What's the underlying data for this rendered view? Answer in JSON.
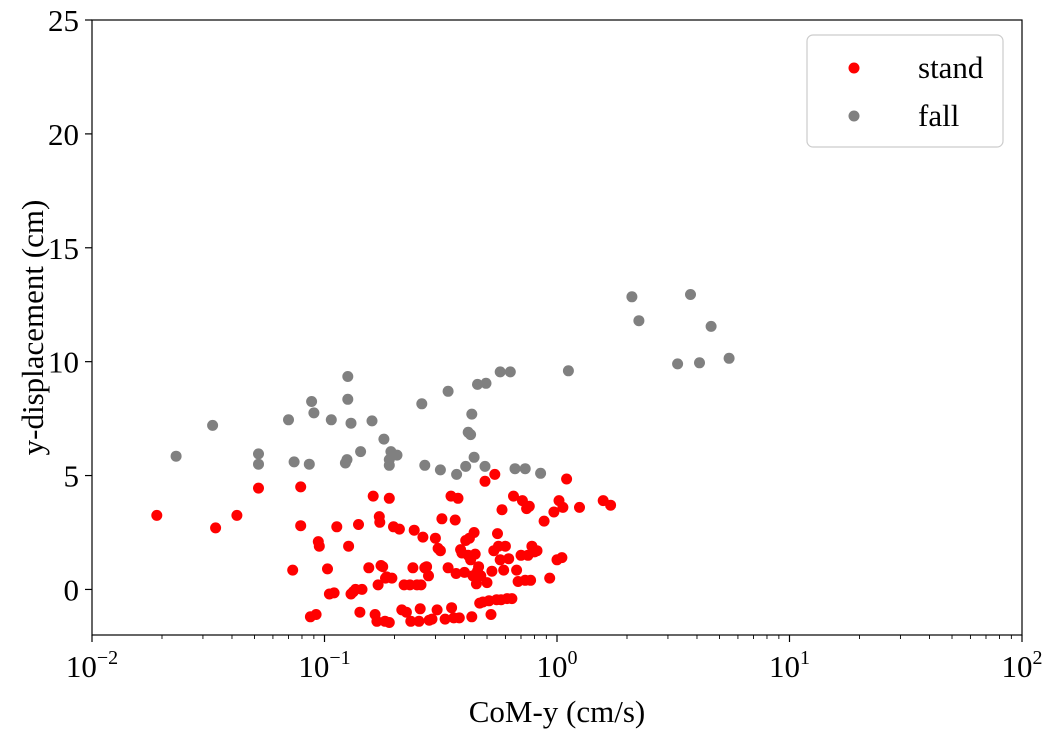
{
  "chart_data": {
    "type": "scatter",
    "title": "",
    "xlabel": "CoM-y (cm/s)",
    "ylabel": "y-displacement (cm)",
    "x_scale": "log",
    "xlim": [
      0.01,
      100
    ],
    "ylim": [
      -2,
      25
    ],
    "x_ticks": [
      {
        "value": 0.01,
        "base": "10",
        "exp": "−2"
      },
      {
        "value": 0.1,
        "base": "10",
        "exp": "−1"
      },
      {
        "value": 1,
        "base": "10",
        "exp": "0"
      },
      {
        "value": 10,
        "base": "10",
        "exp": "1"
      },
      {
        "value": 100,
        "base": "10",
        "exp": "2"
      }
    ],
    "y_ticks": [
      {
        "value": 0,
        "label": "0"
      },
      {
        "value": 5,
        "label": "5"
      },
      {
        "value": 10,
        "label": "10"
      },
      {
        "value": 15,
        "label": "15"
      },
      {
        "value": 20,
        "label": "20"
      },
      {
        "value": 25,
        "label": "25"
      }
    ],
    "grid": false,
    "legend_position": "top-right",
    "series": [
      {
        "name": "stand",
        "color": "#ff0000",
        "points": [
          [
            0.019,
            3.25
          ],
          [
            0.034,
            2.7
          ],
          [
            0.042,
            3.25
          ],
          [
            0.052,
            4.45
          ],
          [
            0.073,
            0.85
          ],
          [
            0.079,
            4.5
          ],
          [
            0.079,
            2.8
          ],
          [
            0.087,
            -1.2
          ],
          [
            0.092,
            -1.1
          ],
          [
            0.094,
            2.1
          ],
          [
            0.095,
            1.9
          ],
          [
            0.103,
            0.9
          ],
          [
            0.105,
            -0.2
          ],
          [
            0.11,
            -0.15
          ],
          [
            0.113,
            2.75
          ],
          [
            0.127,
            1.9
          ],
          [
            0.13,
            -0.2
          ],
          [
            0.133,
            -0.1
          ],
          [
            0.136,
            0.0
          ],
          [
            0.14,
            2.85
          ],
          [
            0.142,
            -1.0
          ],
          [
            0.145,
            0.0
          ],
          [
            0.155,
            0.95
          ],
          [
            0.162,
            4.1
          ],
          [
            0.165,
            -1.1
          ],
          [
            0.168,
            -1.4
          ],
          [
            0.17,
            0.2
          ],
          [
            0.172,
            3.2
          ],
          [
            0.173,
            2.95
          ],
          [
            0.175,
            1.05
          ],
          [
            0.178,
            1.0
          ],
          [
            0.182,
            -1.4
          ],
          [
            0.183,
            0.5
          ],
          [
            0.185,
            0.55
          ],
          [
            0.19,
            -1.45
          ],
          [
            0.19,
            4.0
          ],
          [
            0.195,
            0.5
          ],
          [
            0.198,
            2.75
          ],
          [
            0.21,
            2.65
          ],
          [
            0.215,
            -0.9
          ],
          [
            0.22,
            0.2
          ],
          [
            0.225,
            -1.0
          ],
          [
            0.233,
            0.2
          ],
          [
            0.235,
            -1.4
          ],
          [
            0.24,
            0.95
          ],
          [
            0.243,
            2.6
          ],
          [
            0.25,
            0.2
          ],
          [
            0.255,
            -1.4
          ],
          [
            0.258,
            -0.85
          ],
          [
            0.26,
            0.2
          ],
          [
            0.265,
            2.3
          ],
          [
            0.27,
            0.95
          ],
          [
            0.275,
            1.0
          ],
          [
            0.28,
            0.6
          ],
          [
            0.282,
            -1.35
          ],
          [
            0.29,
            -1.3
          ],
          [
            0.3,
            2.25
          ],
          [
            0.305,
            -0.9
          ],
          [
            0.308,
            1.8
          ],
          [
            0.315,
            1.7
          ],
          [
            0.32,
            3.1
          ],
          [
            0.33,
            -1.3
          ],
          [
            0.34,
            0.95
          ],
          [
            0.35,
            4.1
          ],
          [
            0.352,
            -0.8
          ],
          [
            0.36,
            -1.25
          ],
          [
            0.365,
            3.05
          ],
          [
            0.368,
            0.7
          ],
          [
            0.375,
            4.0
          ],
          [
            0.38,
            -1.25
          ],
          [
            0.385,
            1.75
          ],
          [
            0.39,
            1.6
          ],
          [
            0.4,
            0.75
          ],
          [
            0.405,
            2.15
          ],
          [
            0.415,
            1.5
          ],
          [
            0.42,
            2.25
          ],
          [
            0.425,
            1.3
          ],
          [
            0.43,
            -1.2
          ],
          [
            0.435,
            0.6
          ],
          [
            0.44,
            2.5
          ],
          [
            0.445,
            1.55
          ],
          [
            0.45,
            0.25
          ],
          [
            0.455,
            0.8
          ],
          [
            0.46,
            1.0
          ],
          [
            0.465,
            -0.6
          ],
          [
            0.47,
            0.6
          ],
          [
            0.48,
            -0.55
          ],
          [
            0.49,
            4.75
          ],
          [
            0.5,
            0.3
          ],
          [
            0.51,
            -0.5
          ],
          [
            0.52,
            -1.1
          ],
          [
            0.525,
            0.8
          ],
          [
            0.535,
            1.7
          ],
          [
            0.54,
            5.05
          ],
          [
            0.55,
            -0.45
          ],
          [
            0.555,
            2.45
          ],
          [
            0.56,
            1.9
          ],
          [
            0.57,
            1.3
          ],
          [
            0.575,
            -0.45
          ],
          [
            0.58,
            3.5
          ],
          [
            0.59,
            0.85
          ],
          [
            0.6,
            1.9
          ],
          [
            0.61,
            -0.4
          ],
          [
            0.62,
            1.35
          ],
          [
            0.64,
            -0.4
          ],
          [
            0.65,
            4.1
          ],
          [
            0.67,
            0.85
          ],
          [
            0.68,
            0.35
          ],
          [
            0.7,
            1.5
          ],
          [
            0.71,
            3.9
          ],
          [
            0.73,
            0.4
          ],
          [
            0.74,
            3.55
          ],
          [
            0.75,
            1.5
          ],
          [
            0.76,
            3.65
          ],
          [
            0.77,
            0.4
          ],
          [
            0.78,
            1.9
          ],
          [
            0.8,
            1.65
          ],
          [
            0.82,
            1.7
          ],
          [
            0.88,
            3.0
          ],
          [
            0.93,
            0.5
          ],
          [
            0.97,
            3.4
          ],
          [
            1.0,
            1.3
          ],
          [
            1.02,
            3.9
          ],
          [
            1.05,
            1.4
          ],
          [
            1.06,
            3.6
          ],
          [
            1.1,
            4.85
          ],
          [
            1.25,
            3.6
          ],
          [
            1.58,
            3.9
          ],
          [
            1.7,
            3.7
          ]
        ]
      },
      {
        "name": "fall",
        "color": "#808080",
        "points": [
          [
            0.023,
            5.85
          ],
          [
            0.033,
            7.2
          ],
          [
            0.052,
            5.95
          ],
          [
            0.052,
            5.5
          ],
          [
            0.07,
            7.45
          ],
          [
            0.074,
            5.6
          ],
          [
            0.086,
            5.5
          ],
          [
            0.088,
            8.25
          ],
          [
            0.09,
            7.75
          ],
          [
            0.107,
            7.45
          ],
          [
            0.123,
            5.55
          ],
          [
            0.125,
            5.7
          ],
          [
            0.126,
            8.35
          ],
          [
            0.126,
            9.35
          ],
          [
            0.13,
            7.3
          ],
          [
            0.143,
            6.05
          ],
          [
            0.16,
            7.4
          ],
          [
            0.18,
            6.6
          ],
          [
            0.19,
            5.7
          ],
          [
            0.19,
            5.45
          ],
          [
            0.193,
            6.05
          ],
          [
            0.205,
            5.9
          ],
          [
            0.262,
            8.15
          ],
          [
            0.27,
            5.45
          ],
          [
            0.315,
            5.25
          ],
          [
            0.34,
            8.7
          ],
          [
            0.37,
            5.05
          ],
          [
            0.405,
            5.4
          ],
          [
            0.415,
            6.9
          ],
          [
            0.425,
            6.8
          ],
          [
            0.43,
            7.7
          ],
          [
            0.44,
            5.8
          ],
          [
            0.455,
            9.0
          ],
          [
            0.49,
            5.4
          ],
          [
            0.495,
            9.05
          ],
          [
            0.57,
            9.55
          ],
          [
            0.63,
            9.55
          ],
          [
            0.66,
            5.3
          ],
          [
            0.73,
            5.3
          ],
          [
            0.85,
            5.1
          ],
          [
            1.12,
            9.6
          ],
          [
            2.1,
            12.85
          ],
          [
            2.25,
            11.8
          ],
          [
            3.3,
            9.9
          ],
          [
            3.75,
            12.95
          ],
          [
            4.1,
            9.95
          ],
          [
            4.6,
            11.55
          ],
          [
            5.5,
            10.15
          ]
        ]
      }
    ]
  }
}
